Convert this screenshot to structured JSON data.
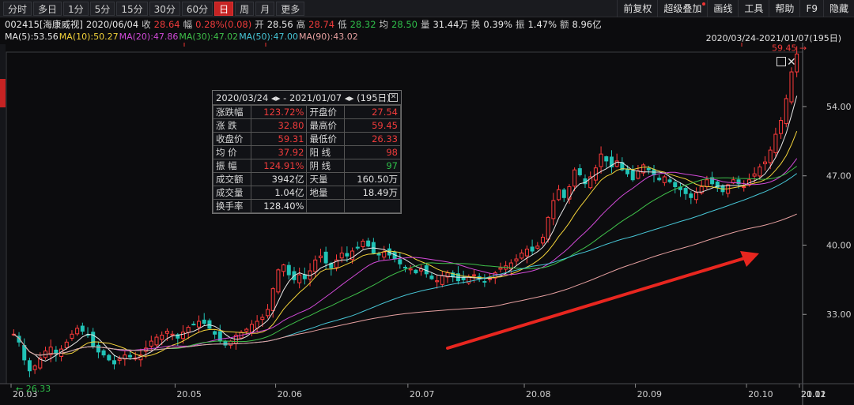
{
  "toolbar": {
    "periods": [
      "分时",
      "多日",
      "1分",
      "5分",
      "15分",
      "30分",
      "60分",
      "日",
      "周",
      "月",
      "更多"
    ],
    "active_index": 7,
    "right_buttons": [
      "前复权",
      "超级叠加",
      "画线",
      "工具",
      "帮助",
      "F9",
      "隐藏"
    ]
  },
  "quote": {
    "code_name": "002415[海康威视]",
    "date": "2020/06/04",
    "close_label": "收",
    "close": "28.64",
    "change_label": "幅",
    "change": "0.28%(0.08)",
    "open_label": "开",
    "open": "28.56",
    "high_label": "高",
    "high": "28.74",
    "low_label": "低",
    "low": "28.32",
    "avg_label": "均",
    "avg": "28.50",
    "vol_label": "量",
    "vol": "31.44万",
    "turnover_label": "换",
    "turnover": "0.39%",
    "amp_label": "振",
    "amp": "1.47%",
    "amount_label": "额",
    "amount": "8.96亿"
  },
  "ma": [
    {
      "label": "MA(5):53.56",
      "color": "#e8e8e8"
    },
    {
      "label": "MA(10):50.27",
      "color": "#f2d23a"
    },
    {
      "label": "MA(20):47.86",
      "color": "#d24ad8"
    },
    {
      "label": "MA(30):47.02",
      "color": "#3fc04a"
    },
    {
      "label": "MA(50):47.00",
      "color": "#47c6d6"
    },
    {
      "label": "MA(90):43.02",
      "color": "#e6a0a0"
    }
  ],
  "range_tag": "2020/03/24-2021/01/07(195日)",
  "stats": {
    "header": "2020/03/24 ◂▸ - 2021/01/07 ◂▸  (195日)",
    "rows": [
      {
        "k1": "涨跌幅",
        "v1": "123.72%",
        "c1": "#ef3b3b",
        "k2": "开盘价",
        "v2": "27.54",
        "c2": "#ef3b3b"
      },
      {
        "k1": "涨  跌",
        "v1": "32.80",
        "c1": "#ef3b3b",
        "k2": "最高价",
        "v2": "59.45",
        "c2": "#ef3b3b"
      },
      {
        "k1": "收盘价",
        "v1": "59.31",
        "c1": "#ef3b3b",
        "k2": "最低价",
        "v2": "26.33",
        "c2": "#ef3b3b"
      },
      {
        "k1": "均  价",
        "v1": "37.92",
        "c1": "#ef3b3b",
        "k2": "阳  线",
        "v2": "98",
        "c2": "#ef3b3b"
      },
      {
        "k1": "振  幅",
        "v1": "124.91%",
        "c1": "#ef3b3b",
        "k2": "阴  线",
        "v2": "97",
        "c2": "#2fbf4a"
      },
      {
        "k1": "成交额",
        "v1": "3942亿",
        "c1": "#e0e0e0",
        "k2": "天量",
        "v2": "160.50万",
        "c2": "#e0e0e0"
      },
      {
        "k1": "成交量",
        "v1": "1.04亿",
        "c1": "#e0e0e0",
        "k2": "地量",
        "v2": "18.49万",
        "c2": "#e0e0e0"
      },
      {
        "k1": "换手率",
        "v1": "128.40%",
        "c1": "#e0e0e0",
        "k2": "",
        "v2": "",
        "c2": "#e0e0e0"
      }
    ]
  },
  "chart_data": {
    "type": "candlestick",
    "y_ticks": [
      "54.00",
      "47.00",
      "40.00",
      "33.00"
    ],
    "ylim": [
      26,
      59.5
    ],
    "x_ticks": [
      "20.03",
      "20.05",
      "20.06",
      "20.07",
      "20.08",
      "20.09",
      "20.10",
      "20.11",
      "20.12",
      "21.01"
    ],
    "low_marker": "26.33",
    "high_marker": "59.45",
    "close_series": [
      31.0,
      30.2,
      28.4,
      27.3,
      27.8,
      28.6,
      29.3,
      29.7,
      29.0,
      29.5,
      30.2,
      31.0,
      31.6,
      31.3,
      30.9,
      29.8,
      29.2,
      28.9,
      28.4,
      28.0,
      28.5,
      28.9,
      28.7,
      28.6,
      28.9,
      29.6,
      30.3,
      30.7,
      30.9,
      31.3,
      31.0,
      30.6,
      31.2,
      31.7,
      32.0,
      32.3,
      32.1,
      31.6,
      31.0,
      30.3,
      29.9,
      30.3,
      30.9,
      31.2,
      31.5,
      32.0,
      32.3,
      32.7,
      33.5,
      35.6,
      37.5,
      38.0,
      37.0,
      36.5,
      37.0,
      36.6,
      37.4,
      38.5,
      38.9,
      38.2,
      37.7,
      38.5,
      39.2,
      38.9,
      39.4,
      39.7,
      40.4,
      39.9,
      39.2,
      39.0,
      39.3,
      39.0,
      38.6,
      38.1,
      37.7,
      37.6,
      37.2,
      37.6,
      37.1,
      36.6,
      36.4,
      36.9,
      37.2,
      36.8,
      36.4,
      36.5,
      36.8,
      37.0,
      36.6,
      36.3,
      36.6,
      37.2,
      37.7,
      37.9,
      38.2,
      38.6,
      39.2,
      39.6,
      39.4,
      39.9,
      40.8,
      42.8,
      44.5,
      45.6,
      44.8,
      45.9,
      47.6,
      47.1,
      46.2,
      46.9,
      47.8,
      49.2,
      48.5,
      47.9,
      48.5,
      47.6,
      47.2,
      46.6,
      47.5,
      48.1,
      47.6,
      47.1,
      46.6,
      46.9,
      46.4,
      45.9,
      45.6,
      45.2,
      44.8,
      45.3,
      45.9,
      46.6,
      46.2,
      45.8,
      45.4,
      46.1,
      46.6,
      46.2,
      45.9,
      46.6,
      47.2,
      47.9,
      48.4,
      49.6,
      51.2,
      52.6,
      54.8,
      57.5,
      59.31
    ],
    "series": [
      {
        "name": "MA(5)",
        "color": "#e8e8e8"
      },
      {
        "name": "MA(10)",
        "color": "#f2d23a"
      },
      {
        "name": "MA(20)",
        "color": "#d24ad8"
      },
      {
        "name": "MA(30)",
        "color": "#3fc04a"
      },
      {
        "name": "MA(50)",
        "color": "#47c6d6"
      },
      {
        "name": "MA(90)",
        "color": "#e6a0a0"
      }
    ],
    "grid": false
  }
}
